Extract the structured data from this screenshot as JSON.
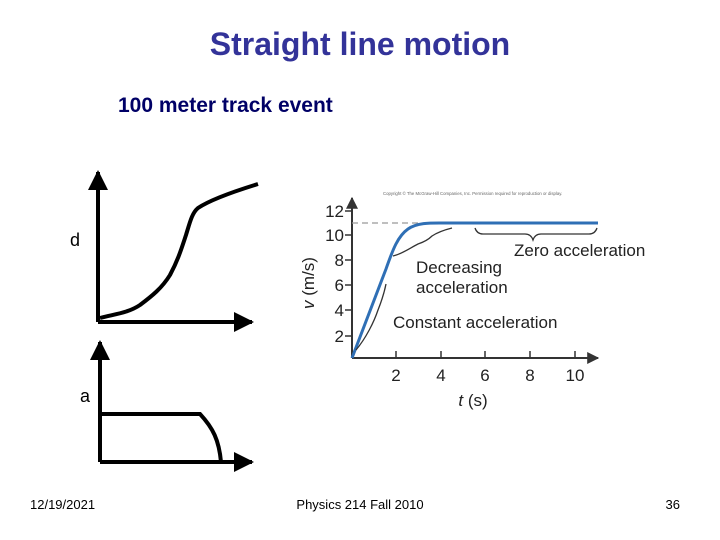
{
  "slide": {
    "title": "Straight line motion",
    "subtitle": "100 meter track event"
  },
  "sketch": {
    "d_label": "d",
    "a_label": "a"
  },
  "velocity_graph": {
    "copyright": "Copyright © The McGraw-Hill Companies, Inc. Permission required for reproduction or display.",
    "ylabel_var": "v",
    "ylabel_unit": "(m/s)",
    "xlabel_var": "t",
    "xlabel_unit": "(s)",
    "y_ticks": [
      "2",
      "4",
      "6",
      "8",
      "10",
      "12"
    ],
    "x_ticks": [
      "2",
      "4",
      "6",
      "8",
      "10"
    ],
    "annotations": {
      "zero": "Zero acceleration",
      "decreasing_1": "Decreasing",
      "decreasing_2": "acceleration",
      "constant": "Constant acceleration"
    },
    "colors": {
      "curve": "#2f6fb5"
    }
  },
  "footer": {
    "date": "12/19/2021",
    "course": "Physics 214 Fall 2010",
    "page": "36"
  }
}
